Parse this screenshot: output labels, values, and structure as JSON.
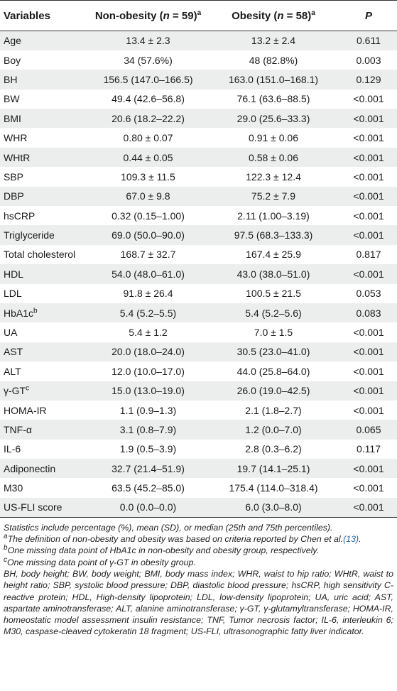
{
  "table": {
    "headers": {
      "variables": "Variables",
      "nonobese_label": "Non-obesity (",
      "nonobese_n": "n",
      "nonobese_count": " = 59)",
      "nonobese_sup": "a",
      "obese_label": "Obesity (",
      "obese_n": "n",
      "obese_count": " = 58)",
      "obese_sup": "a",
      "p": "P"
    },
    "rows": [
      {
        "var": "Age",
        "sup": "",
        "non": "13.4 ± 2.3",
        "obs": "13.2 ± 2.4",
        "p": "0.611"
      },
      {
        "var": "Boy",
        "sup": "",
        "non": "34 (57.6%)",
        "obs": "48 (82.8%)",
        "p": "0.003"
      },
      {
        "var": "BH",
        "sup": "",
        "non": "156.5 (147.0–166.5)",
        "obs": "163.0 (151.0–168.1)",
        "p": "0.129"
      },
      {
        "var": "BW",
        "sup": "",
        "non": "49.4 (42.6–56.8)",
        "obs": "76.1 (63.6–88.5)",
        "p": "<0.001"
      },
      {
        "var": "BMI",
        "sup": "",
        "non": "20.6 (18.2–22.2)",
        "obs": "29.0 (25.6–33.3)",
        "p": "<0.001"
      },
      {
        "var": "WHR",
        "sup": "",
        "non": "0.80 ± 0.07",
        "obs": "0.91 ± 0.06",
        "p": "<0.001"
      },
      {
        "var": "WHtR",
        "sup": "",
        "non": "0.44 ± 0.05",
        "obs": "0.58 ± 0.06",
        "p": "<0.001"
      },
      {
        "var": "SBP",
        "sup": "",
        "non": "109.3 ± 11.5",
        "obs": "122.3 ± 12.4",
        "p": "<0.001"
      },
      {
        "var": "DBP",
        "sup": "",
        "non": "67.0 ± 9.8",
        "obs": "75.2 ± 7.9",
        "p": "<0.001"
      },
      {
        "var": "hsCRP",
        "sup": "",
        "non": "0.32 (0.15–1.00)",
        "obs": "2.11 (1.00–3.19)",
        "p": "<0.001"
      },
      {
        "var": "Triglyceride",
        "sup": "",
        "non": "69.0 (50.0–90.0)",
        "obs": "97.5 (68.3–133.3)",
        "p": "<0.001"
      },
      {
        "var": "Total cholesterol",
        "sup": "",
        "non": "168.7 ± 32.7",
        "obs": "167.4 ± 25.9",
        "p": "0.817"
      },
      {
        "var": "HDL",
        "sup": "",
        "non": "54.0 (48.0–61.0)",
        "obs": "43.0 (38.0–51.0)",
        "p": "<0.001"
      },
      {
        "var": "LDL",
        "sup": "",
        "non": "91.8 ± 26.4",
        "obs": "100.5 ± 21.5",
        "p": "0.053"
      },
      {
        "var": "HbA1c",
        "sup": "b",
        "non": "5.4 (5.2–5.5)",
        "obs": "5.4 (5.2–5.6)",
        "p": "0.083"
      },
      {
        "var": "UA",
        "sup": "",
        "non": "5.4 ± 1.2",
        "obs": "7.0 ± 1.5",
        "p": "<0.001"
      },
      {
        "var": "AST",
        "sup": "",
        "non": "20.0 (18.0–24.0)",
        "obs": "30.5 (23.0–41.0)",
        "p": "<0.001"
      },
      {
        "var": "ALT",
        "sup": "",
        "non": "12.0 (10.0–17.0)",
        "obs": "44.0 (25.8–64.0)",
        "p": "<0.001"
      },
      {
        "var": "γ-GT",
        "sup": "c",
        "non": "15.0 (13.0–19.0)",
        "obs": "26.0 (19.0–42.5)",
        "p": "<0.001"
      },
      {
        "var": "HOMA-IR",
        "sup": "",
        "non": "1.1 (0.9–1.3)",
        "obs": "2.1 (1.8–2.7)",
        "p": "<0.001"
      },
      {
        "var": "TNF-α",
        "sup": "",
        "non": "3.1 (0.8–7.9)",
        "obs": "1.2 (0.0–7.0)",
        "p": "0.065"
      },
      {
        "var": "IL-6",
        "sup": "",
        "non": "1.9 (0.5–3.9)",
        "obs": "2.8 (0.3–6.2)",
        "p": "0.117"
      },
      {
        "var": "Adiponectin",
        "sup": "",
        "non": "32.7 (21.4–51.9)",
        "obs": "19.7 (14.1–25.1)",
        "p": "<0.001"
      },
      {
        "var": "M30",
        "sup": "",
        "non": "63.5 (45.2–85.0)",
        "obs": "175.4 (114.0–318.4)",
        "p": "<0.001"
      },
      {
        "var": "US-FLI score",
        "sup": "",
        "non": "0.0 (0.0–0.0)",
        "obs": "6.0 (3.0–8.0)",
        "p": "<0.001"
      }
    ]
  },
  "footnotes": {
    "stats": "Statistics include percentage (%), mean (SD), or median (25th and 75th percentiles).",
    "a_sup": "a",
    "a_text": "The definition of non-obesity and obesity was based on criteria reported by Chen et al.",
    "a_ref": "(13)",
    "a_end": ".",
    "b_sup": "b",
    "b_text": "One missing data point of HbA1c in non-obesity and obesity group, respectively.",
    "c_sup": "c",
    "c_text": "One missing data point of γ-GT in obesity group.",
    "abbreviations": "BH, body height; BW, body weight; BMI, body mass index; WHR, waist to hip ratio; WHtR, waist to height ratio; SBP, systolic blood pressure; DBP, diastolic blood pressure; hsCRP, high sensitivity C-reactive protein; HDL, High-density lipoprotein; LDL, low-density lipoprotein; UA, uric acid; AST, aspartate aminotransferase; ALT, alanine aminotransferase; γ-GT, γ-glutamyltransferase; HOMA-IR, homeostatic model assessment insulin resistance; TNF, Tumor necrosis factor; IL-6, interleukin 6; M30, caspase-cleaved cytokeratin 18 fragment; US-FLI, ultrasonographic fatty liver indicator."
  }
}
